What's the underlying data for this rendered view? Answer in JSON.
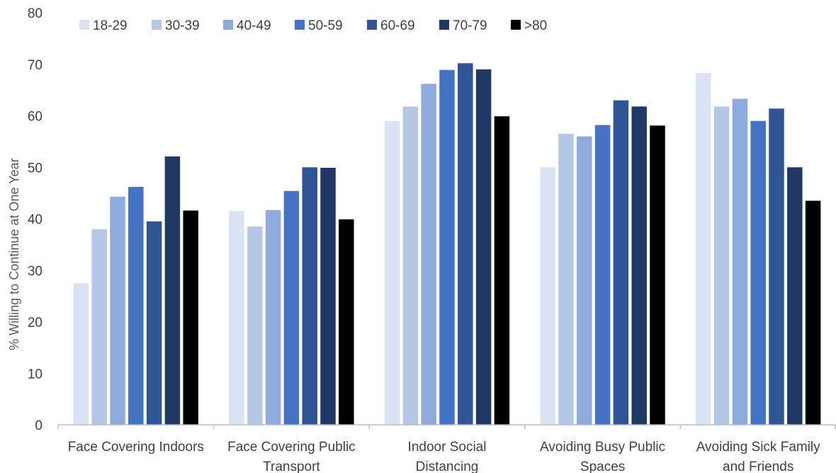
{
  "chart_data": {
    "type": "bar",
    "ylabel": "% Willing to Continue at One Year",
    "xlabel": "",
    "ylim": [
      0,
      80
    ],
    "yticks": [
      0,
      10,
      20,
      30,
      40,
      50,
      60,
      70,
      80
    ],
    "grid": false,
    "legend_position": "top-left",
    "categories": [
      [
        "Face Covering Indoors"
      ],
      [
        "Face Covering Public",
        "Transport"
      ],
      [
        "Indoor Social",
        "Distancing"
      ],
      [
        "Avoiding Busy Public",
        "Spaces"
      ],
      [
        "Avoiding Sick Family",
        "and Friends"
      ]
    ],
    "series": [
      {
        "name": "18-29",
        "color": "#dae3f3",
        "values": [
          27.5,
          41.5,
          59.0,
          50.0,
          68.3
        ]
      },
      {
        "name": "30-39",
        "color": "#b4c7e7",
        "values": [
          38.0,
          38.5,
          61.8,
          56.5,
          61.8
        ]
      },
      {
        "name": "40-49",
        "color": "#8faadc",
        "values": [
          44.3,
          41.7,
          66.2,
          56.0,
          63.3
        ]
      },
      {
        "name": "50-59",
        "color": "#4472c4",
        "values": [
          46.2,
          45.4,
          68.9,
          58.2,
          59.0
        ]
      },
      {
        "name": "60-69",
        "color": "#2f5597",
        "values": [
          39.5,
          50.0,
          70.2,
          63.0,
          61.4
        ]
      },
      {
        "name": "70-79",
        "color": "#203864",
        "values": [
          52.1,
          49.9,
          69.0,
          61.8,
          50.0
        ]
      },
      {
        "name": ">80",
        "color": "#000000",
        "values": [
          41.6,
          39.9,
          59.9,
          58.1,
          43.5
        ]
      }
    ]
  }
}
